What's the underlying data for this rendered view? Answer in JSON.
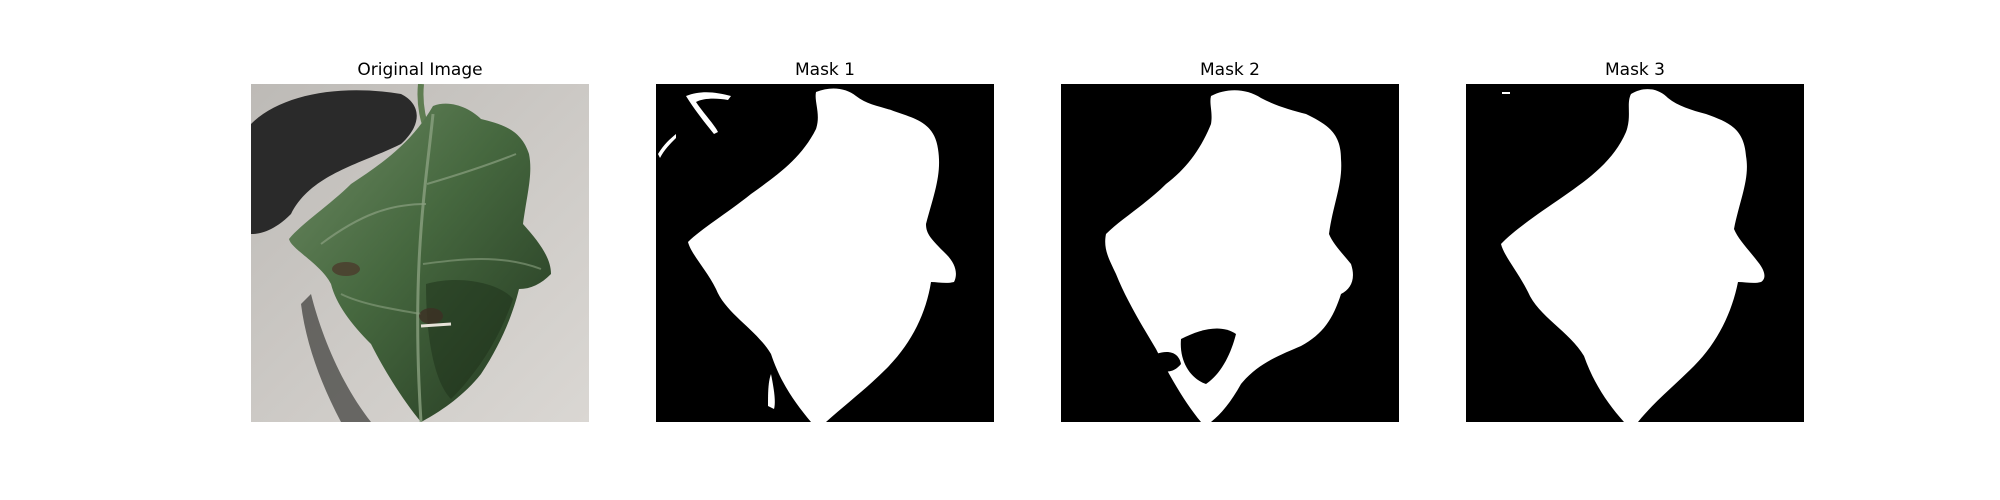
{
  "figure": {
    "panels": [
      {
        "title": "Original Image",
        "kind": "photo",
        "subject": "leaf"
      },
      {
        "title": "Mask 1",
        "kind": "mask"
      },
      {
        "title": "Mask 2",
        "kind": "mask"
      },
      {
        "title": "Mask 3",
        "kind": "mask"
      }
    ],
    "colors": {
      "background": "#ffffff",
      "mask_foreground": "#ffffff",
      "mask_background": "#000000",
      "leaf_dark": "#2f4a2c",
      "leaf_mid": "#46683f",
      "leaf_light": "#6d8a63",
      "ground": "#c9c6c2",
      "shadow": "#2a2a2a"
    }
  }
}
